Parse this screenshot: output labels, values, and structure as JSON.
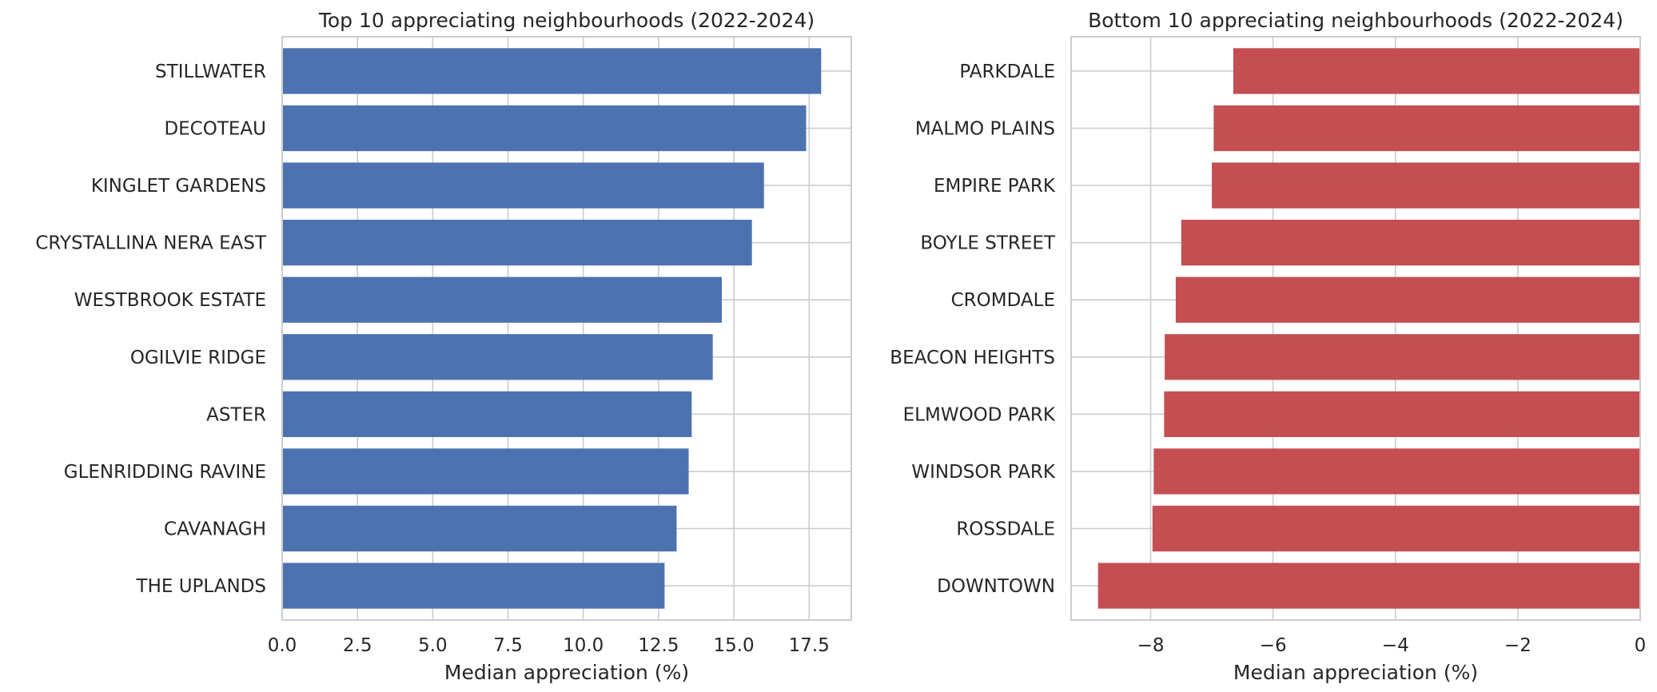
{
  "chart_data": [
    {
      "type": "bar",
      "orientation": "horizontal",
      "title": "Top 10 appreciating neighbourhoods (2022-2024)",
      "xlabel": "Median appreciation (%)",
      "ylabel": "",
      "categories": [
        "STILLWATER",
        "DECOTEAU",
        "KINGLET GARDENS",
        "CRYSTALLINA NERA EAST",
        "WESTBROOK ESTATE",
        "OGILVIE RIDGE",
        "ASTER",
        "GLENRIDDING RAVINE",
        "CAVANAGH",
        "THE UPLANDS"
      ],
      "values": [
        17.9,
        17.4,
        16.0,
        15.6,
        14.6,
        14.3,
        13.6,
        13.5,
        13.1,
        12.7
      ],
      "xlim": [
        0,
        18.9
      ],
      "xticks": [
        0,
        2.5,
        5,
        7.5,
        10,
        12.5,
        15,
        17.5
      ],
      "xtick_labels": [
        "0.0",
        "2.5",
        "5.0",
        "7.5",
        "10.0",
        "12.5",
        "15.0",
        "17.5"
      ],
      "color": "#4c72b0",
      "grid": true
    },
    {
      "type": "bar",
      "orientation": "horizontal",
      "title": "Bottom 10 appreciating neighbourhoods (2022-2024)",
      "xlabel": "Median appreciation (%)",
      "ylabel": "",
      "categories": [
        "PARKDALE",
        "MALMO PLAINS",
        "EMPIRE PARK",
        "BOYLE STREET",
        "CROMDALE",
        "BEACON HEIGHTS",
        "ELMWOOD PARK",
        "WINDSOR PARK",
        "ROSSDALE",
        "DOWNTOWN"
      ],
      "values": [
        -6.65,
        -6.97,
        -7.0,
        -7.5,
        -7.59,
        -7.77,
        -7.78,
        -7.95,
        -7.97,
        -8.86
      ],
      "xlim": [
        -9.3,
        0
      ],
      "xticks": [
        -8,
        -6,
        -4,
        -2,
        0
      ],
      "xtick_labels": [
        "−8",
        "−6",
        "−4",
        "−2",
        "0"
      ],
      "color": "#c44e52",
      "grid": true
    }
  ]
}
